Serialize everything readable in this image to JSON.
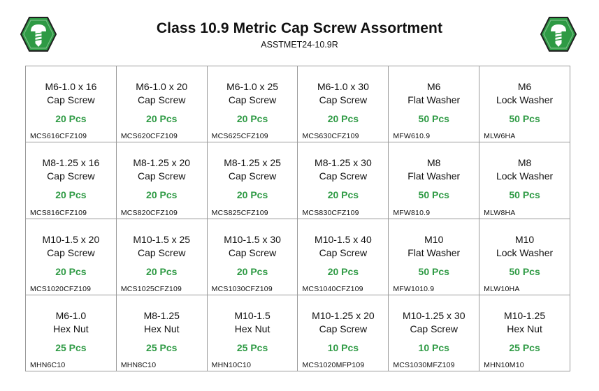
{
  "header": {
    "title": "Class 10.9 Metric Cap Screw Assortment",
    "subtitle": "ASSTMET24-10.9R",
    "logo_icon": "hex-screw-logo-icon",
    "brand_color": "#2e9a44"
  },
  "cells": [
    {
      "line1": "M6-1.0 x 16",
      "line2": "Cap Screw",
      "qty": "20 Pcs",
      "code": "MCS616CFZ109"
    },
    {
      "line1": "M6-1.0 x 20",
      "line2": "Cap Screw",
      "qty": "20 Pcs",
      "code": "MCS620CFZ109"
    },
    {
      "line1": "M6-1.0 x 25",
      "line2": "Cap Screw",
      "qty": "20 Pcs",
      "code": "MCS625CFZ109"
    },
    {
      "line1": "M6-1.0 x 30",
      "line2": "Cap Screw",
      "qty": "20 Pcs",
      "code": "MCS630CFZ109"
    },
    {
      "line1": "M6",
      "line2": "Flat Washer",
      "qty": "50 Pcs",
      "code": "MFW610.9"
    },
    {
      "line1": "M6",
      "line2": "Lock Washer",
      "qty": "50 Pcs",
      "code": "MLW6HA"
    },
    {
      "line1": "M8-1.25 x 16",
      "line2": "Cap Screw",
      "qty": "20 Pcs",
      "code": "MCS816CFZ109"
    },
    {
      "line1": "M8-1.25 x 20",
      "line2": "Cap Screw",
      "qty": "20 Pcs",
      "code": "MCS820CFZ109"
    },
    {
      "line1": "M8-1.25 x 25",
      "line2": "Cap Screw",
      "qty": "20 Pcs",
      "code": "MCS825CFZ109"
    },
    {
      "line1": "M8-1.25 x 30",
      "line2": "Cap Screw",
      "qty": "20 Pcs",
      "code": "MCS830CFZ109"
    },
    {
      "line1": "M8",
      "line2": "Flat Washer",
      "qty": "50 Pcs",
      "code": "MFW810.9"
    },
    {
      "line1": "M8",
      "line2": "Lock Washer",
      "qty": "50 Pcs",
      "code": "MLW8HA"
    },
    {
      "line1": "M10-1.5 x 20",
      "line2": "Cap Screw",
      "qty": "20 Pcs",
      "code": "MCS1020CFZ109"
    },
    {
      "line1": "M10-1.5 x 25",
      "line2": "Cap Screw",
      "qty": "20 Pcs",
      "code": "MCS1025CFZ109"
    },
    {
      "line1": "M10-1.5 x 30",
      "line2": "Cap Screw",
      "qty": "20 Pcs",
      "code": "MCS1030CFZ109"
    },
    {
      "line1": "M10-1.5 x 40",
      "line2": "Cap Screw",
      "qty": "20 Pcs",
      "code": "MCS1040CFZ109"
    },
    {
      "line1": "M10",
      "line2": "Flat Washer",
      "qty": "50 Pcs",
      "code": "MFW1010.9"
    },
    {
      "line1": "M10",
      "line2": "Lock Washer",
      "qty": "50 Pcs",
      "code": "MLW10HA"
    },
    {
      "line1": "M6-1.0",
      "line2": "Hex Nut",
      "qty": "25 Pcs",
      "code": "MHN6C10"
    },
    {
      "line1": "M8-1.25",
      "line2": "Hex Nut",
      "qty": "25 Pcs",
      "code": "MHN8C10"
    },
    {
      "line1": "M10-1.5",
      "line2": "Hex Nut",
      "qty": "25 Pcs",
      "code": "MHN10C10"
    },
    {
      "line1": "M10-1.25 x 20",
      "line2": "Cap Screw",
      "qty": "10 Pcs",
      "code": "MCS1020MFP109"
    },
    {
      "line1": "M10-1.25 x 30",
      "line2": "Cap Screw",
      "qty": "10 Pcs",
      "code": "MCS1030MFZ109"
    },
    {
      "line1": "M10-1.25",
      "line2": "Hex Nut",
      "qty": "25 Pcs",
      "code": "MHN10M10"
    }
  ]
}
